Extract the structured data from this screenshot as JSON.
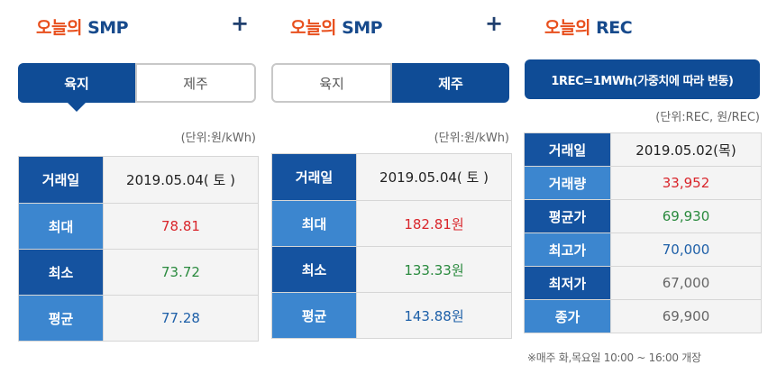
{
  "panel1": {
    "title_ko": "오늘의",
    "title_en": "SMP",
    "toggle": {
      "left": "육지",
      "right": "제주",
      "active": "left"
    },
    "unit": "(단위:원/kWh)",
    "rows": [
      {
        "label": "거래일",
        "value": "2019.05.04( 토 )"
      },
      {
        "label": "최대",
        "value": "78.81"
      },
      {
        "label": "최소",
        "value": "73.72"
      },
      {
        "label": "평균",
        "value": "77.28"
      }
    ]
  },
  "panel2": {
    "title_ko": "오늘의",
    "title_en": "SMP",
    "toggle": {
      "left": "육지",
      "right": "제주",
      "active": "right"
    },
    "unit": "(단위:원/kWh)",
    "rows": [
      {
        "label": "거래일",
        "value": "2019.05.04( 토 )"
      },
      {
        "label": "최대",
        "value": "182.81원"
      },
      {
        "label": "최소",
        "value": "133.33원"
      },
      {
        "label": "평균",
        "value": "143.88원"
      }
    ]
  },
  "panel3": {
    "title_ko": "오늘의",
    "title_en": "REC",
    "banner": "1REC=1MWh(가중치에 따라 변동)",
    "unit": "(단위:REC, 원/REC)",
    "rows": [
      {
        "label": "거래일",
        "value": "2019.05.02(목)"
      },
      {
        "label": "거래량",
        "value": "33,952"
      },
      {
        "label": "평균가",
        "value": "69,930"
      },
      {
        "label": "최고가",
        "value": "70,000"
      },
      {
        "label": "최저가",
        "value": "67,000"
      },
      {
        "label": "종가",
        "value": "69,900"
      }
    ],
    "note": "※매주 화,목요일 10:00 ~ 16:00 개장"
  },
  "plus_sign": "+",
  "colors": {
    "brand_blue": "#0f4c96",
    "accent_orange": "#e8501e",
    "max_red": "#d9252b",
    "min_green": "#2a8a3e",
    "avg_blue": "#1d5fa8"
  }
}
